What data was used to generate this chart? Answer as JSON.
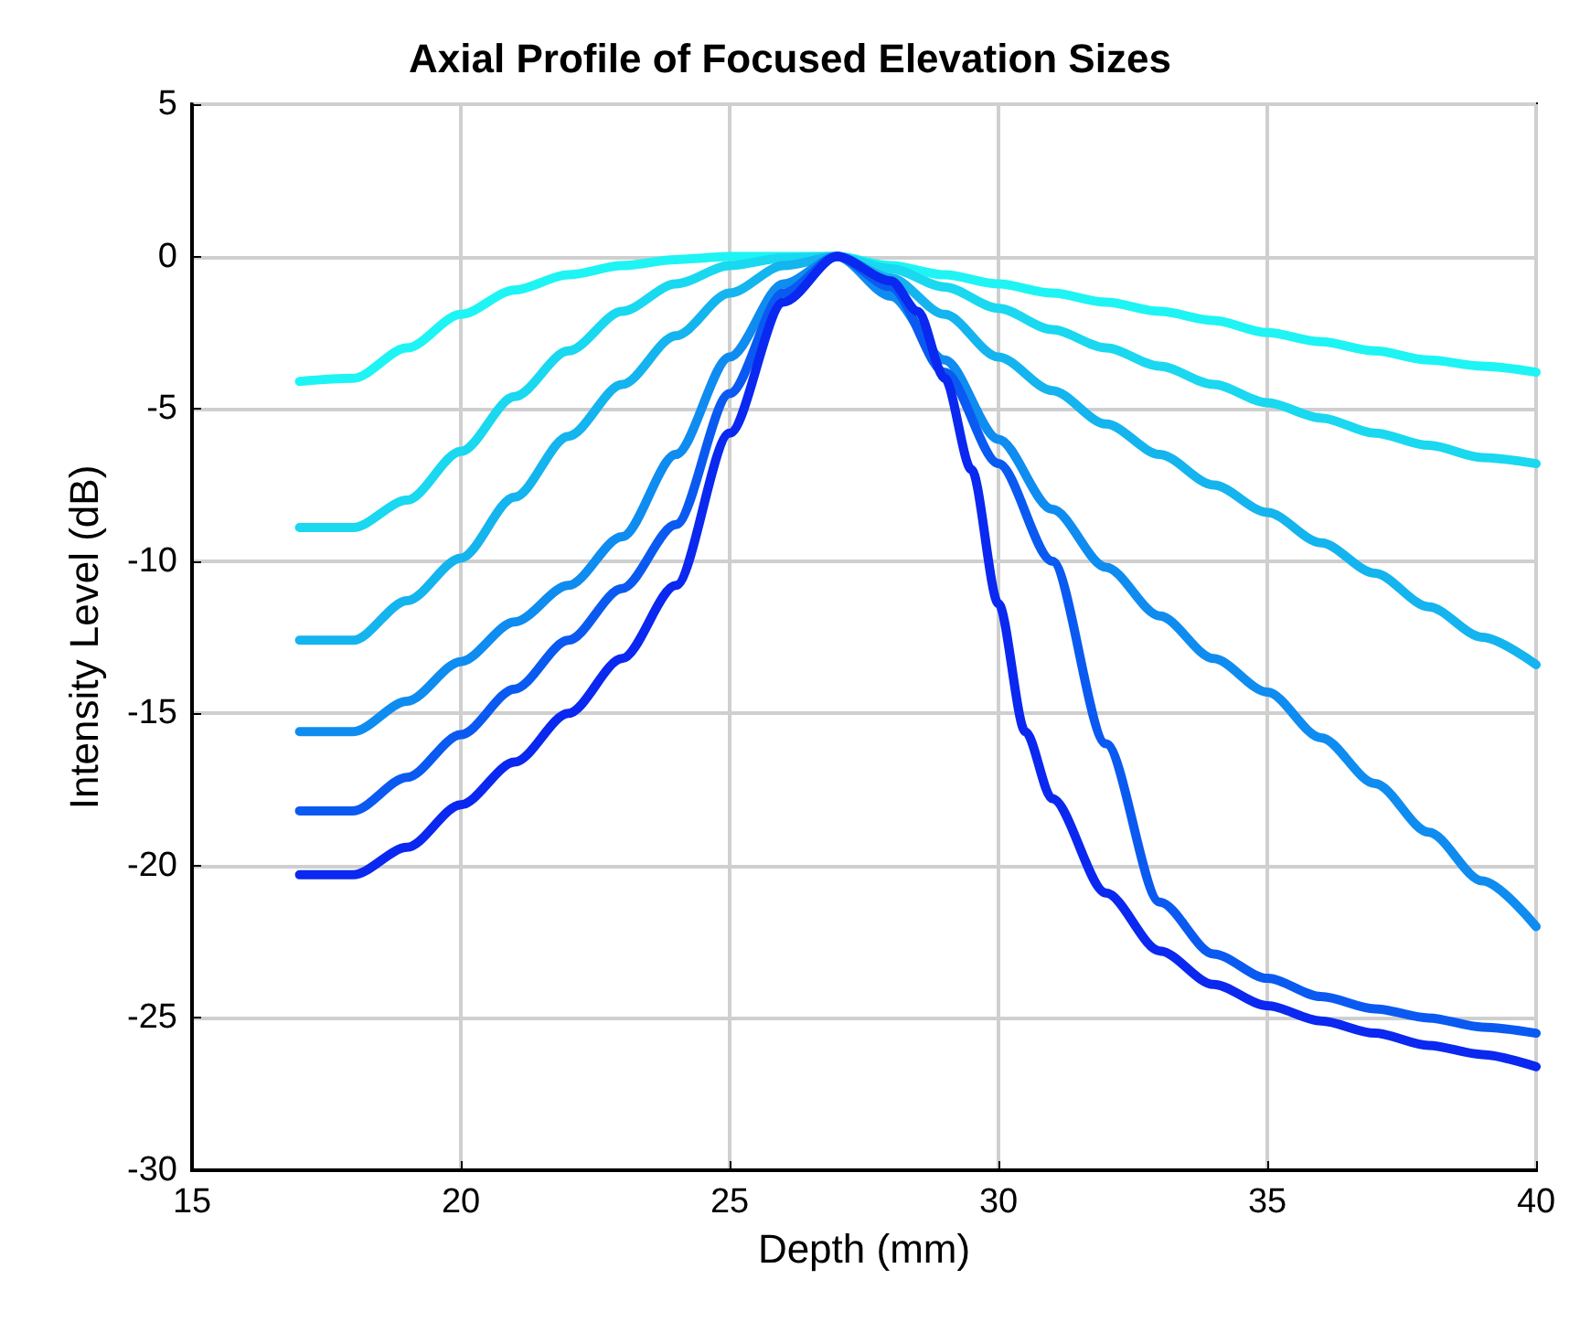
{
  "chart_data": {
    "type": "line",
    "title": "Axial Profile of Focused Elevation Sizes",
    "xlabel": "Depth (mm)",
    "ylabel": "Intensity Level (dB)",
    "xlim": [
      15,
      40
    ],
    "xticks": [
      15,
      20,
      25,
      30,
      35,
      40
    ],
    "ylim": [
      -30,
      5
    ],
    "yticks": [
      -30,
      -25,
      -20,
      -15,
      -10,
      -5,
      0,
      5
    ],
    "grid": true,
    "marker": "none",
    "line_style": "solid",
    "series": [
      {
        "color": "#1ef4f4",
        "x": [
          17,
          18,
          19,
          20,
          21,
          22,
          23,
          24,
          25,
          26,
          27,
          28,
          29,
          30,
          31,
          32,
          33,
          34,
          35,
          36,
          37,
          38,
          39,
          40
        ],
        "values": [
          -4.1,
          -4.0,
          -3.0,
          -1.9,
          -1.1,
          -0.6,
          -0.3,
          -0.1,
          0,
          0,
          0,
          -0.3,
          -0.6,
          -0.9,
          -1.2,
          -1.5,
          -1.8,
          -2.1,
          -2.5,
          -2.8,
          -3.1,
          -3.4,
          -3.6,
          -3.8
        ]
      },
      {
        "color": "#19d8f0",
        "x": [
          17,
          18,
          19,
          20,
          21,
          22,
          23,
          24,
          25,
          26,
          27,
          28,
          29,
          30,
          31,
          32,
          33,
          34,
          35,
          36,
          37,
          38,
          39,
          40
        ],
        "values": [
          -8.9,
          -8.9,
          -8.0,
          -6.4,
          -4.6,
          -3.1,
          -1.8,
          -0.9,
          -0.3,
          -0.05,
          0,
          -0.4,
          -1.0,
          -1.7,
          -2.4,
          -3.0,
          -3.6,
          -4.2,
          -4.8,
          -5.3,
          -5.8,
          -6.2,
          -6.6,
          -6.8
        ]
      },
      {
        "color": "#14b4ee",
        "x": [
          17,
          18,
          19,
          20,
          21,
          22,
          23,
          24,
          25,
          26,
          27,
          28,
          29,
          30,
          31,
          32,
          33,
          34,
          35,
          36,
          37,
          38,
          39,
          40
        ],
        "values": [
          -12.6,
          -12.6,
          -11.3,
          -9.9,
          -7.9,
          -5.9,
          -4.2,
          -2.6,
          -1.2,
          -0.3,
          0,
          -0.7,
          -1.9,
          -3.3,
          -4.4,
          -5.5,
          -6.5,
          -7.5,
          -8.4,
          -9.4,
          -10.4,
          -11.5,
          -12.5,
          -13.4
        ]
      },
      {
        "color": "#0f8cf0",
        "x": [
          17,
          18,
          19,
          20,
          21,
          22,
          23,
          24,
          25,
          26,
          27,
          28,
          29,
          30,
          31,
          32,
          33,
          34,
          35,
          36,
          37,
          38,
          39,
          40
        ],
        "values": [
          -15.6,
          -15.6,
          -14.6,
          -13.3,
          -12.0,
          -10.8,
          -9.2,
          -6.5,
          -3.3,
          -0.9,
          0,
          -1.3,
          -3.4,
          -6.0,
          -8.3,
          -10.2,
          -11.8,
          -13.2,
          -14.3,
          -15.8,
          -17.3,
          -18.9,
          -20.5,
          -22.0
        ]
      },
      {
        "color": "#0a5af2",
        "x": [
          17,
          18,
          19,
          20,
          21,
          22,
          23,
          24,
          25,
          26,
          27,
          28,
          29,
          30,
          31,
          32,
          33,
          34,
          35,
          36,
          37,
          38,
          39,
          40
        ],
        "values": [
          -18.2,
          -18.2,
          -17.1,
          -15.7,
          -14.2,
          -12.6,
          -10.9,
          -8.8,
          -4.5,
          -1.2,
          0,
          -1.0,
          -3.8,
          -6.8,
          -10.0,
          -16.0,
          -21.2,
          -22.9,
          -23.7,
          -24.3,
          -24.7,
          -25.0,
          -25.3,
          -25.5
        ]
      },
      {
        "color": "#0a28f0",
        "x": [
          17,
          18,
          19,
          20,
          21,
          22,
          23,
          24,
          25,
          26,
          27,
          28,
          28.5,
          29,
          29.5,
          30,
          30.5,
          31,
          32,
          33,
          34,
          35,
          36,
          37,
          38,
          39,
          40
        ],
        "values": [
          -20.3,
          -20.3,
          -19.4,
          -18.0,
          -16.6,
          -15.0,
          -13.2,
          -10.8,
          -5.8,
          -1.5,
          0,
          -0.8,
          -1.8,
          -4.0,
          -7.0,
          -11.4,
          -15.6,
          -17.8,
          -20.9,
          -22.8,
          -23.9,
          -24.6,
          -25.1,
          -25.5,
          -25.9,
          -26.2,
          -26.6
        ]
      }
    ]
  }
}
